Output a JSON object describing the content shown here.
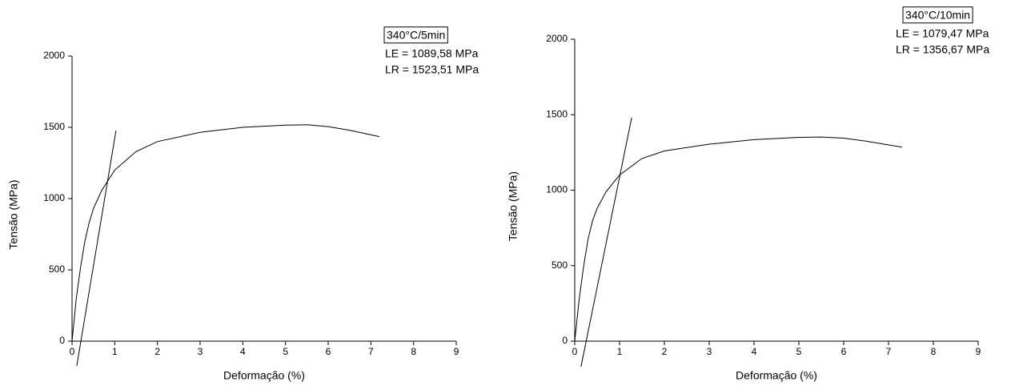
{
  "chart_data": [
    {
      "type": "line",
      "xlabel": "Deformação (%)",
      "ylabel": "Tensão (MPa)",
      "annotation": "340°C/5min",
      "annotation_lines": [
        "LE = 1089,58 MPa",
        "LR = 1523,51 MPa"
      ],
      "xlim": [
        0,
        9
      ],
      "ylim": [
        0,
        2000
      ],
      "xticks": [
        0,
        1,
        2,
        3,
        4,
        5,
        6,
        7,
        8,
        9
      ],
      "yticks": [
        0,
        500,
        1000,
        1500,
        2000
      ],
      "series": [
        {
          "color": "#000000",
          "x": [
            0,
            0.1,
            0.2,
            0.3,
            0.4,
            0.5,
            0.7,
            1,
            1.5,
            2,
            3,
            4,
            5,
            5.5,
            6,
            6.5,
            7.2
          ],
          "values": [
            0,
            300,
            520,
            700,
            830,
            930,
            1060,
            1200,
            1330,
            1400,
            1465,
            1500,
            1515,
            1518,
            1505,
            1480,
            1435
          ]
        },
        {
          "color": "#000000",
          "x": [
            0.11,
            1.03
          ],
          "values": [
            -174,
            1477
          ]
        }
      ]
    },
    {
      "type": "line",
      "xlabel": "Deformação (%)",
      "ylabel": "Tensão (MPa)",
      "annotation": "340°C/10min",
      "annotation_lines": [
        "LE = 1079,47 MPa",
        "LR = 1356,67 MPa"
      ],
      "xlim": [
        0,
        9
      ],
      "ylim": [
        0,
        2000
      ],
      "xticks": [
        0,
        1,
        2,
        3,
        4,
        5,
        6,
        7,
        8,
        9
      ],
      "yticks": [
        0,
        500,
        1000,
        1500,
        2000
      ],
      "series": [
        {
          "color": "#000000",
          "x": [
            0,
            0.1,
            0.2,
            0.3,
            0.4,
            0.5,
            0.7,
            1,
            1.5,
            2,
            3,
            4,
            5,
            5.5,
            6,
            6.5,
            7.3
          ],
          "values": [
            0,
            280,
            500,
            680,
            800,
            880,
            990,
            1100,
            1210,
            1260,
            1305,
            1335,
            1350,
            1352,
            1345,
            1325,
            1285
          ]
        },
        {
          "color": "#000000",
          "x": [
            0.14,
            1.27
          ],
          "values": [
            -170,
            1480
          ]
        }
      ]
    }
  ]
}
